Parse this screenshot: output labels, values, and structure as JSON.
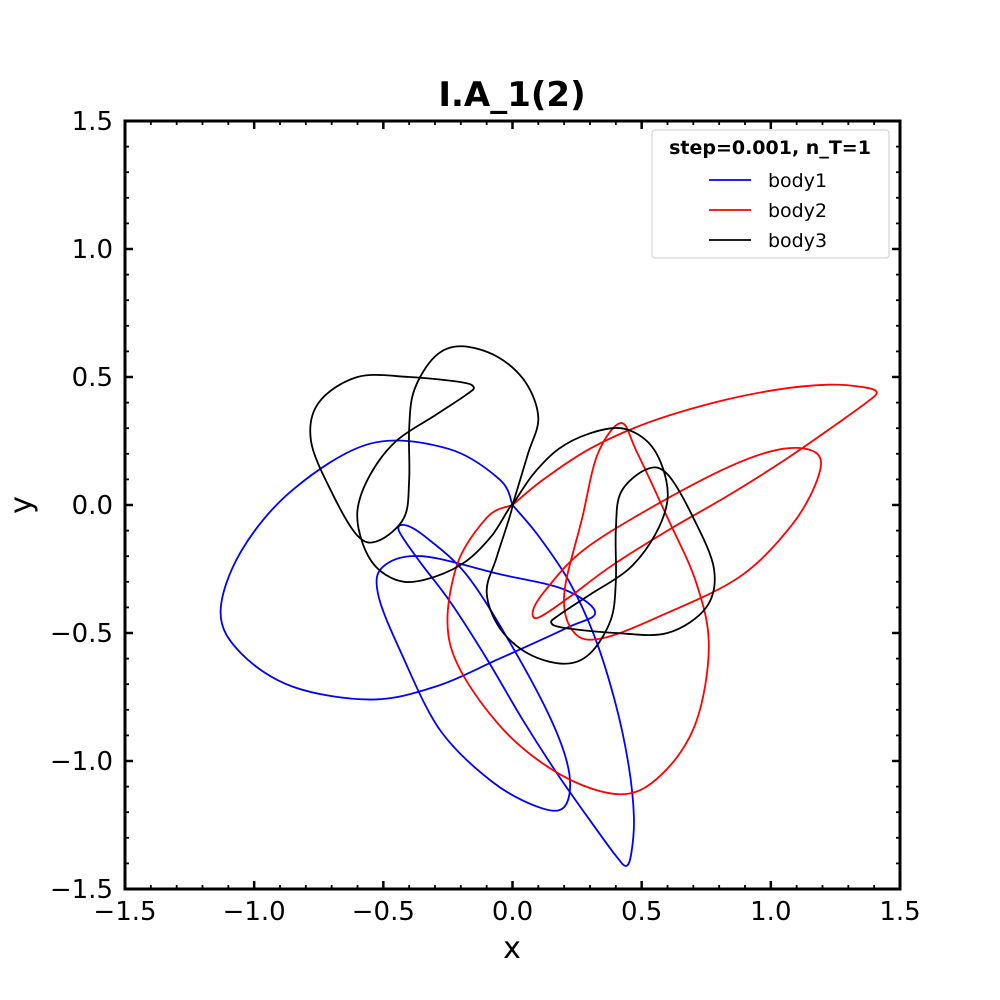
{
  "chart_data": {
    "type": "line",
    "title": "I.A_1(2)",
    "xlabel": "x",
    "ylabel": "y",
    "xlim": [
      -1.5,
      1.5
    ],
    "ylim": [
      -1.5,
      1.5
    ],
    "x_ticks": [
      -1.5,
      -1.0,
      -0.5,
      0.0,
      0.5,
      1.0,
      1.5
    ],
    "y_ticks": [
      -1.5,
      -1.0,
      -0.5,
      0.0,
      0.5,
      1.0,
      1.5
    ],
    "x_tick_labels": [
      "−1.5",
      "−1.0",
      "−0.5",
      "0.0",
      "0.5",
      "1.0",
      "1.5"
    ],
    "y_tick_labels": [
      "−1.5",
      "−1.0",
      "−0.5",
      "0.0",
      "0.5",
      "1.0",
      "1.5"
    ],
    "grid": false,
    "legend": {
      "title": "step=0.001, n_T=1",
      "placement": "top-right"
    },
    "series": [
      {
        "name": "body1",
        "color": "#0000ff",
        "points": [
          [
            0.0,
            0.0
          ],
          [
            0.1,
            -0.12
          ],
          [
            0.22,
            -0.3
          ],
          [
            0.32,
            -0.52
          ],
          [
            0.4,
            -0.78
          ],
          [
            0.45,
            -1.02
          ],
          [
            0.47,
            -1.22
          ],
          [
            0.46,
            -1.36
          ],
          [
            0.44,
            -1.41
          ],
          [
            0.4,
            -1.37
          ],
          [
            0.32,
            -1.26
          ],
          [
            0.18,
            -1.06
          ],
          [
            0.04,
            -0.84
          ],
          [
            -0.1,
            -0.6
          ],
          [
            -0.24,
            -0.38
          ],
          [
            -0.36,
            -0.22
          ],
          [
            -0.44,
            -0.1
          ],
          [
            -0.41,
            -0.08
          ],
          [
            -0.33,
            -0.13
          ],
          [
            -0.18,
            -0.27
          ],
          [
            -0.02,
            -0.52
          ],
          [
            0.15,
            -0.84
          ],
          [
            0.22,
            -1.05
          ],
          [
            0.2,
            -1.18
          ],
          [
            0.1,
            -1.18
          ],
          [
            -0.08,
            -1.08
          ],
          [
            -0.28,
            -0.88
          ],
          [
            -0.43,
            -0.58
          ],
          [
            -0.52,
            -0.35
          ],
          [
            -0.5,
            -0.24
          ],
          [
            -0.35,
            -0.2
          ],
          [
            -0.05,
            -0.27
          ],
          [
            0.2,
            -0.33
          ],
          [
            0.32,
            -0.42
          ],
          [
            0.21,
            -0.48
          ],
          [
            -0.05,
            -0.6
          ],
          [
            -0.3,
            -0.71
          ],
          [
            -0.55,
            -0.76
          ],
          [
            -0.85,
            -0.71
          ],
          [
            -1.05,
            -0.58
          ],
          [
            -1.13,
            -0.42
          ],
          [
            -1.05,
            -0.18
          ],
          [
            -0.85,
            0.06
          ],
          [
            -0.55,
            0.24
          ],
          [
            -0.25,
            0.22
          ],
          [
            -0.05,
            0.1
          ],
          [
            0.0,
            0.0
          ]
        ]
      },
      {
        "name": "body2",
        "color": "#ff0000",
        "points": [
          [
            0.0,
            0.0
          ],
          [
            0.12,
            0.1
          ],
          [
            0.3,
            0.22
          ],
          [
            0.52,
            0.32
          ],
          [
            0.78,
            0.4
          ],
          [
            1.02,
            0.45
          ],
          [
            1.22,
            0.47
          ],
          [
            1.36,
            0.46
          ],
          [
            1.41,
            0.44
          ],
          [
            1.37,
            0.4
          ],
          [
            1.26,
            0.32
          ],
          [
            1.06,
            0.18
          ],
          [
            0.84,
            0.04
          ],
          [
            0.6,
            -0.1
          ],
          [
            0.38,
            -0.24
          ],
          [
            0.22,
            -0.36
          ],
          [
            0.1,
            -0.44
          ],
          [
            0.08,
            -0.41
          ],
          [
            0.13,
            -0.33
          ],
          [
            0.27,
            -0.18
          ],
          [
            0.52,
            -0.02
          ],
          [
            0.84,
            0.15
          ],
          [
            1.05,
            0.22
          ],
          [
            1.18,
            0.2
          ],
          [
            1.18,
            0.1
          ],
          [
            1.08,
            -0.08
          ],
          [
            0.88,
            -0.28
          ],
          [
            0.58,
            -0.43
          ],
          [
            0.35,
            -0.52
          ],
          [
            0.24,
            -0.5
          ],
          [
            0.2,
            -0.35
          ],
          [
            0.27,
            -0.05
          ],
          [
            0.33,
            0.2
          ],
          [
            0.42,
            0.32
          ],
          [
            0.48,
            0.21
          ],
          [
            0.6,
            -0.05
          ],
          [
            0.71,
            -0.3
          ],
          [
            0.76,
            -0.55
          ],
          [
            0.71,
            -0.85
          ],
          [
            0.58,
            -1.05
          ],
          [
            0.42,
            -1.13
          ],
          [
            0.18,
            -1.05
          ],
          [
            -0.06,
            -0.85
          ],
          [
            -0.24,
            -0.55
          ],
          [
            -0.22,
            -0.25
          ],
          [
            -0.1,
            -0.05
          ],
          [
            0.0,
            0.0
          ]
        ]
      },
      {
        "name": "body3",
        "color": "#000000",
        "points": [
          [
            0.0,
            0.0
          ],
          [
            0.08,
            0.12
          ],
          [
            0.18,
            0.22
          ],
          [
            0.3,
            0.28
          ],
          [
            0.42,
            0.3
          ],
          [
            0.52,
            0.25
          ],
          [
            0.58,
            0.15
          ],
          [
            0.6,
            0.02
          ],
          [
            0.55,
            -0.12
          ],
          [
            0.45,
            -0.25
          ],
          [
            0.3,
            -0.35
          ],
          [
            0.18,
            -0.43
          ],
          [
            0.15,
            -0.46
          ],
          [
            0.2,
            -0.48
          ],
          [
            0.4,
            -0.5
          ],
          [
            0.6,
            -0.5
          ],
          [
            0.75,
            -0.4
          ],
          [
            0.78,
            -0.25
          ],
          [
            0.7,
            -0.05
          ],
          [
            0.6,
            0.12
          ],
          [
            0.52,
            0.14
          ],
          [
            0.42,
            0.05
          ],
          [
            0.4,
            -0.1
          ],
          [
            0.4,
            -0.3
          ],
          [
            0.38,
            -0.45
          ],
          [
            0.3,
            -0.58
          ],
          [
            0.2,
            -0.62
          ],
          [
            0.06,
            -0.58
          ],
          [
            -0.05,
            -0.48
          ],
          [
            -0.1,
            -0.34
          ],
          [
            -0.06,
            -0.2
          ],
          [
            0.0,
            0.0
          ],
          [
            -0.08,
            -0.12
          ],
          [
            -0.18,
            -0.22
          ],
          [
            -0.3,
            -0.28
          ],
          [
            -0.42,
            -0.3
          ],
          [
            -0.52,
            -0.25
          ],
          [
            -0.58,
            -0.15
          ],
          [
            -0.6,
            -0.02
          ],
          [
            -0.55,
            0.12
          ],
          [
            -0.45,
            0.25
          ],
          [
            -0.3,
            0.35
          ],
          [
            -0.18,
            0.43
          ],
          [
            -0.15,
            0.46
          ],
          [
            -0.2,
            0.48
          ],
          [
            -0.4,
            0.5
          ],
          [
            -0.6,
            0.5
          ],
          [
            -0.75,
            0.4
          ],
          [
            -0.78,
            0.25
          ],
          [
            -0.7,
            0.05
          ],
          [
            -0.6,
            -0.12
          ],
          [
            -0.52,
            -0.14
          ],
          [
            -0.42,
            -0.05
          ],
          [
            -0.4,
            0.1
          ],
          [
            -0.4,
            0.3
          ],
          [
            -0.38,
            0.45
          ],
          [
            -0.3,
            0.58
          ],
          [
            -0.2,
            0.62
          ],
          [
            -0.06,
            0.58
          ],
          [
            0.05,
            0.48
          ],
          [
            0.1,
            0.34
          ],
          [
            0.06,
            0.2
          ],
          [
            0.0,
            0.0
          ]
        ]
      }
    ]
  }
}
